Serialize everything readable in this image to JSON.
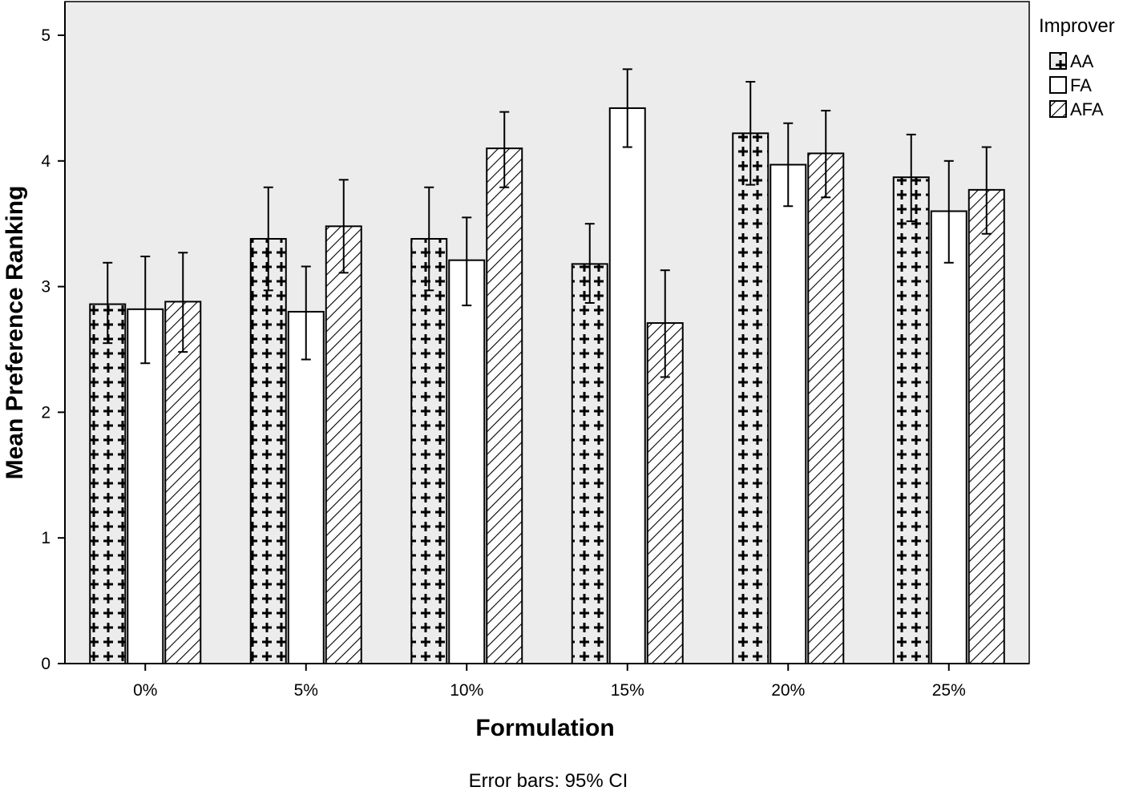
{
  "chart_data": {
    "type": "bar",
    "title": "",
    "xlabel": "Formulation",
    "ylabel": "Mean Preference Ranking",
    "ylim": [
      0,
      5.2
    ],
    "yticks": [
      0,
      1,
      2,
      3,
      4,
      5
    ],
    "categories": [
      "0%",
      "5%",
      "10%",
      "15%",
      "20%",
      "25%"
    ],
    "legend_title": "Improver",
    "legend_position": "top-right, outside plot",
    "series": [
      {
        "name": "AA",
        "pattern": "crosses",
        "values": [
          2.86,
          3.38,
          3.38,
          3.18,
          4.22,
          3.87
        ],
        "ci_low": [
          2.55,
          2.97,
          2.97,
          2.87,
          3.81,
          3.52
        ],
        "ci_high": [
          3.19,
          3.79,
          3.79,
          3.5,
          4.63,
          4.21
        ]
      },
      {
        "name": "FA",
        "pattern": "none",
        "values": [
          2.82,
          2.8,
          3.21,
          4.42,
          3.97,
          3.6
        ],
        "ci_low": [
          2.39,
          2.42,
          2.85,
          4.11,
          3.64,
          3.19
        ],
        "ci_high": [
          3.24,
          3.16,
          3.55,
          4.73,
          4.3,
          4.0
        ]
      },
      {
        "name": "AFA",
        "pattern": "diagonal-hatch",
        "values": [
          2.88,
          3.48,
          4.1,
          2.71,
          4.06,
          3.77
        ],
        "ci_low": [
          2.48,
          3.11,
          3.79,
          2.28,
          3.71,
          3.42
        ],
        "ci_high": [
          3.27,
          3.85,
          4.39,
          3.13,
          4.4,
          4.11
        ]
      }
    ],
    "footnote": "Error bars: 95% CI",
    "colors": {
      "plot_background": "#ececec",
      "bar_fill": "#ffffff",
      "stroke": "#000000"
    }
  }
}
